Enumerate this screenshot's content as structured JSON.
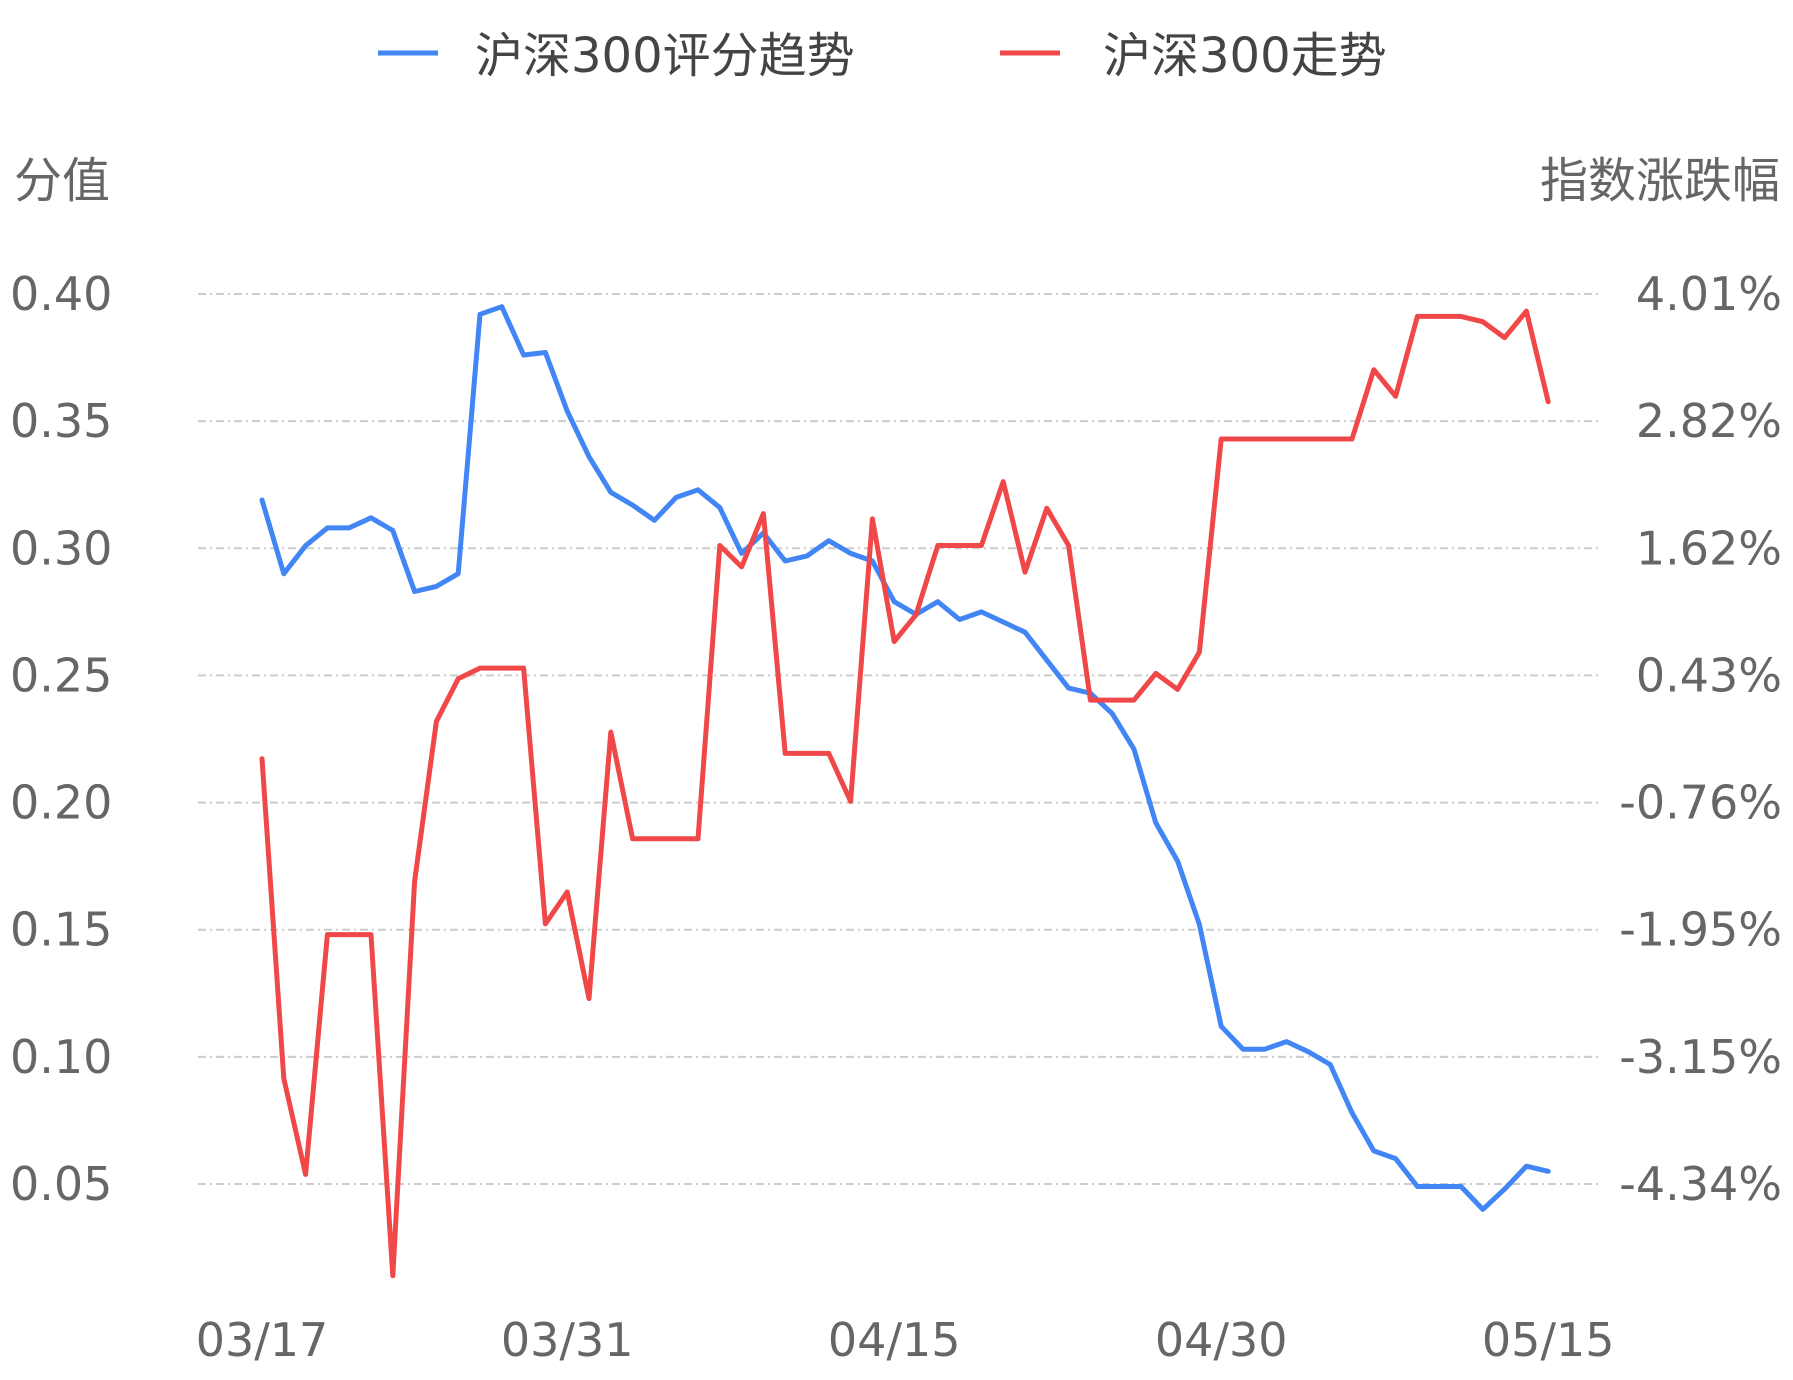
{
  "chart_data": {
    "type": "line",
    "legend": {
      "placement": "top-center",
      "entries": [
        {
          "label": "沪深300评分趋势",
          "color": "#4285F4"
        },
        {
          "label": "沪深300走势",
          "color": "#F04848"
        }
      ]
    },
    "left_axis": {
      "title": "分值",
      "ticks": [
        "0.40",
        "0.35",
        "0.30",
        "0.25",
        "0.20",
        "0.15",
        "0.10",
        "0.05"
      ],
      "range": [
        0.05,
        0.4
      ]
    },
    "right_axis": {
      "title": "指数涨跌幅",
      "ticks": [
        "4.01%",
        "2.82%",
        "1.62%",
        "0.43%",
        "-0.76%",
        "-1.95%",
        "-3.15%",
        "-4.34%"
      ],
      "range": [
        -4.34,
        4.01
      ]
    },
    "x_tick_labels": [
      {
        "label": "03/17",
        "index": 0
      },
      {
        "label": "03/31",
        "index": 14
      },
      {
        "label": "04/15",
        "index": 29
      },
      {
        "label": "04/30",
        "index": 44
      },
      {
        "label": "05/15",
        "index": 59
      }
    ],
    "grid": {
      "horizontal": true,
      "style": "dash-dot",
      "color": "#cccccc"
    },
    "series": [
      {
        "name": "沪深300评分趋势",
        "axis": "left",
        "color": "#4285F4",
        "values": [
          0.319,
          0.29,
          0.301,
          0.308,
          0.308,
          0.312,
          0.307,
          0.283,
          0.285,
          0.29,
          0.392,
          0.395,
          0.376,
          0.377,
          0.354,
          0.336,
          0.322,
          0.317,
          0.311,
          0.32,
          0.323,
          0.316,
          0.298,
          0.306,
          0.295,
          0.297,
          0.303,
          0.298,
          0.295,
          0.279,
          0.274,
          0.279,
          0.272,
          0.275,
          0.271,
          0.267,
          0.256,
          0.245,
          0.243,
          0.235,
          0.221,
          0.192,
          0.177,
          0.152,
          0.112,
          0.103,
          0.103,
          0.106,
          0.102,
          0.097,
          0.078,
          0.063,
          0.06,
          0.049,
          0.049,
          0.049,
          0.04,
          0.048,
          0.057,
          0.055
        ]
      },
      {
        "name": "沪深300走势",
        "axis": "right",
        "color": "#F04848",
        "values": [
          -0.35,
          -3.35,
          -4.25,
          -2.0,
          -2.0,
          -2.0,
          -5.2,
          -1.5,
          0.0,
          0.4,
          0.5,
          0.5,
          0.5,
          -1.9,
          -1.6,
          -2.6,
          -0.1,
          -1.1,
          -1.1,
          -1.1,
          -1.1,
          1.65,
          1.45,
          1.95,
          -0.3,
          -0.3,
          -0.3,
          -0.75,
          1.9,
          0.75,
          1.0,
          1.65,
          1.65,
          1.65,
          2.25,
          1.4,
          2.0,
          1.65,
          0.2,
          0.2,
          0.2,
          0.45,
          0.3,
          0.65,
          2.65,
          2.65,
          2.65,
          2.65,
          2.65,
          2.65,
          2.65,
          3.3,
          3.05,
          3.8,
          3.8,
          3.8,
          3.75,
          3.6,
          3.85,
          3.0
        ]
      }
    ]
  }
}
